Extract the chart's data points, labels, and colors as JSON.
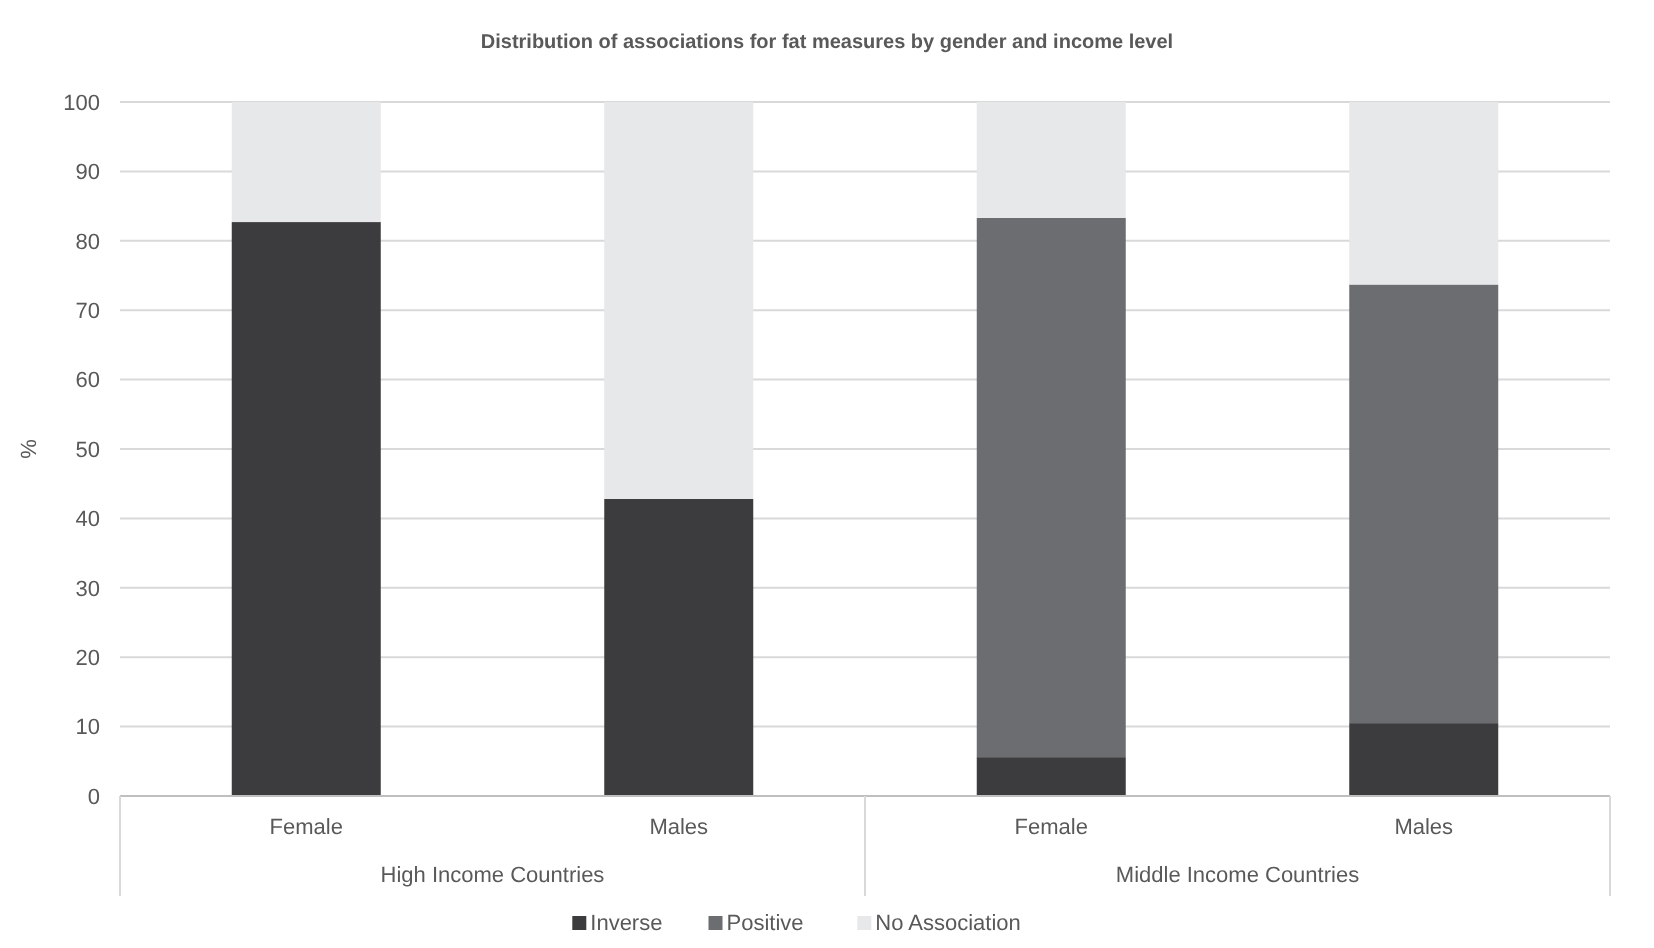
{
  "chart_data": {
    "type": "bar",
    "stacked": true,
    "title": "Distribution of associations for fat measures by gender and income level",
    "ylabel": "%",
    "categories": [
      "Female",
      "Males",
      "Female",
      "Males"
    ],
    "series": [
      {
        "name": "Inverse",
        "color": "#3c3c3e",
        "values": [
          82.7,
          42.8,
          5.6,
          10.5
        ]
      },
      {
        "name": "Positive",
        "color": "#6c6d70",
        "values": [
          0,
          0,
          77.7,
          63.2
        ]
      },
      {
        "name": "No Association",
        "color": "#e7e8ea",
        "values": [
          17.3,
          57.2,
          16.7,
          26.3
        ]
      }
    ],
    "ylim": [
      0,
      100
    ],
    "yticks": [
      0,
      10,
      20,
      30,
      40,
      50,
      60,
      70,
      80,
      90,
      100
    ],
    "grid": "y",
    "legend": "bottom",
    "annotations": [
      "High Income Countries",
      "Middle Income Countries"
    ]
  }
}
